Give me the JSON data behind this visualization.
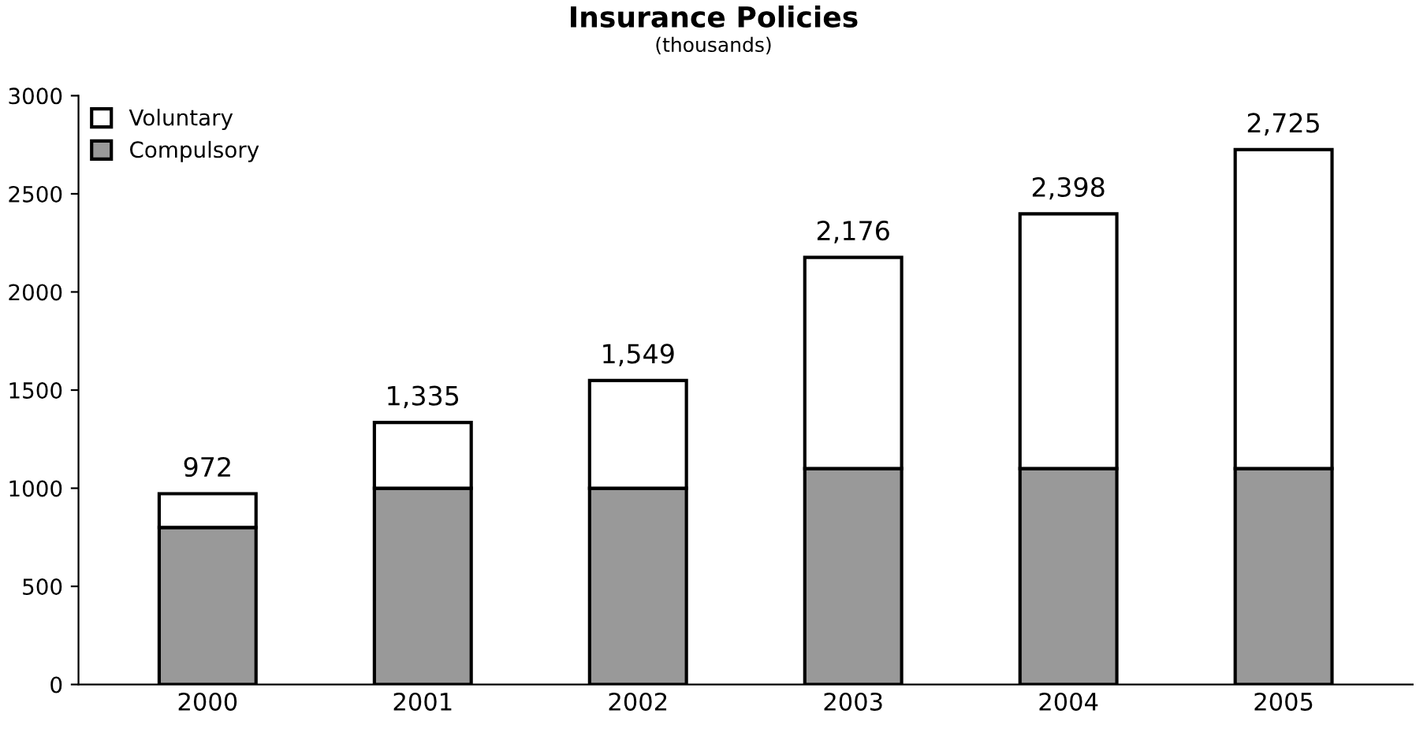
{
  "chart_data": {
    "type": "bar",
    "title": "Insurance Policies",
    "subtitle": "(thousands)",
    "categories": [
      "2000",
      "2001",
      "2002",
      "2003",
      "2004",
      "2005"
    ],
    "stacked": true,
    "series": [
      {
        "name": "Compulsory",
        "color": "#999999",
        "values": [
          800,
          1000,
          1000,
          1100,
          1100,
          1100
        ]
      },
      {
        "name": "Voluntary",
        "color": "#ffffff",
        "values": [
          172,
          335,
          549,
          1076,
          1298,
          1625
        ]
      }
    ],
    "totals": [
      "972",
      "1,335",
      "1,549",
      "2,176",
      "2,398",
      "2,725"
    ],
    "ylim": [
      0,
      3000
    ],
    "yticks": [
      0,
      500,
      1000,
      1500,
      2000,
      2500,
      3000
    ],
    "grid": false,
    "legend": "top left"
  }
}
